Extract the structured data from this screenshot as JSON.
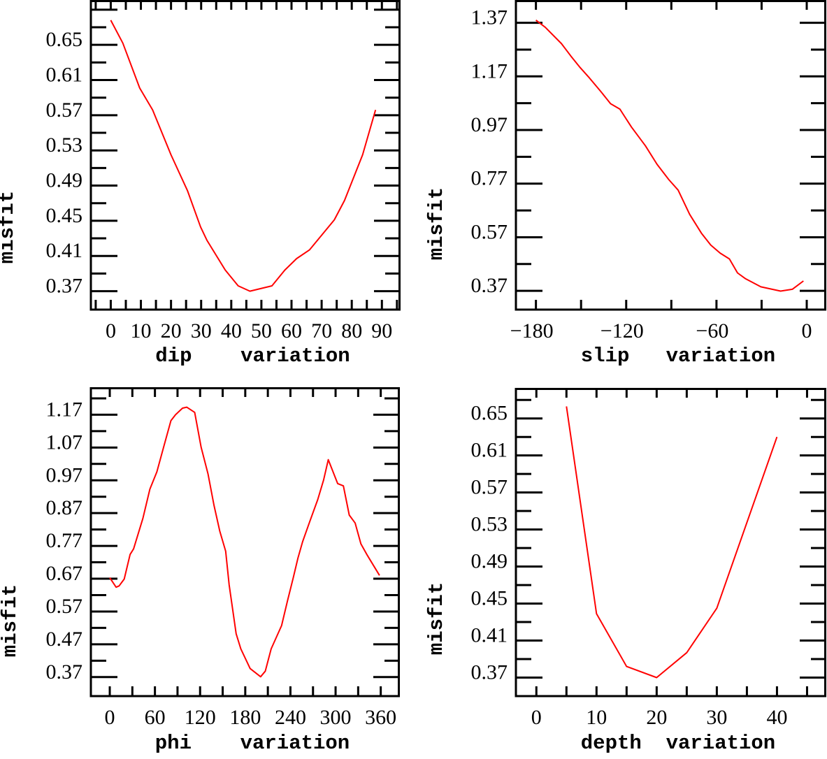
{
  "chart_data": [
    {
      "type": "line",
      "xlabel": "dip    variation",
      "ylabel": "misfit",
      "xlim": [
        -6.6,
        96.2
      ],
      "ylim": [
        0.349,
        0.701
      ],
      "xticks": [
        0,
        10,
        20,
        30,
        40,
        50,
        60,
        70,
        80,
        90
      ],
      "xtick_labels": [
        "0",
        "10",
        "20",
        "30",
        "40",
        "50",
        "60",
        "70",
        "80",
        "90"
      ],
      "xminor_step": 5,
      "yticks": [
        0.37,
        0.41,
        0.45,
        0.49,
        0.53,
        0.57,
        0.61,
        0.65
      ],
      "ytick_labels": [
        "0.37",
        "0.41",
        "0.45",
        "0.49",
        "0.53",
        "0.57",
        "0.61",
        "0.65"
      ],
      "yminor_step": 0.02,
      "color": "#ff0000",
      "series": [
        {
          "name": "misfit",
          "x": [
            0,
            4,
            9.6,
            13.9,
            20,
            25.5,
            29.8,
            31.9,
            38,
            42.3,
            46.2,
            53.5,
            57.8,
            61.7,
            66,
            74.2,
            77.6,
            83.6,
            87.9
          ],
          "y": [
            0.678,
            0.652,
            0.601,
            0.576,
            0.525,
            0.484,
            0.443,
            0.428,
            0.394,
            0.376,
            0.37,
            0.376,
            0.394,
            0.407,
            0.417,
            0.451,
            0.473,
            0.525,
            0.576
          ]
        }
      ]
    },
    {
      "type": "line",
      "xlabel": "slip   variation",
      "ylabel": "misfit",
      "xlim": [
        -193.3,
        13
      ],
      "ylim": [
        0.3,
        1.455
      ],
      "xticks": [
        -180,
        -120,
        -60,
        0
      ],
      "xtick_labels": [
        "−180",
        "−120",
        "−60",
        "0"
      ],
      "xminor_step": 30,
      "yticks": [
        0.37,
        0.57,
        0.77,
        0.97,
        1.17,
        1.37
      ],
      "ytick_labels": [
        "0.37",
        "0.57",
        "0.77",
        "0.97",
        "1.17",
        "1.37"
      ],
      "yminor_step": 0.1,
      "color": "#ff0000",
      "series": [
        {
          "name": "misfit",
          "x": [
            -180,
            -173.8,
            -163,
            -156.8,
            -150.6,
            -144.4,
            -136.6,
            -133.5,
            -130.4,
            -124.2,
            -116.5,
            -107.2,
            -99.5,
            -91.7,
            -85.5,
            -77.8,
            -70,
            -63.8,
            -57.6,
            -51.4,
            -46,
            -40.6,
            -30.5,
            -17.4,
            -9.6,
            -2.2
          ],
          "y": [
            1.38,
            1.353,
            1.292,
            1.246,
            1.203,
            1.164,
            1.112,
            1.09,
            1.068,
            1.048,
            0.981,
            0.911,
            0.842,
            0.785,
            0.746,
            0.655,
            0.585,
            0.541,
            0.511,
            0.489,
            0.437,
            0.415,
            0.385,
            0.369,
            0.376,
            0.407
          ]
        }
      ]
    },
    {
      "type": "line",
      "xlabel": "phi    variation",
      "ylabel": "misfit",
      "xlim": [
        -25.1,
        385.4
      ],
      "ylim": [
        0.312,
        1.254
      ],
      "xticks": [
        0,
        60,
        120,
        180,
        240,
        300,
        360
      ],
      "xtick_labels": [
        "0",
        "60",
        "120",
        "180",
        "240",
        "300",
        "360"
      ],
      "xminor_step": 30,
      "yticks": [
        0.37,
        0.47,
        0.57,
        0.67,
        0.77,
        0.87,
        0.97,
        1.07,
        1.17
      ],
      "ytick_labels": [
        "0.37",
        "0.47",
        "0.57",
        "0.67",
        "0.77",
        "0.87",
        "0.97",
        "1.07",
        "1.17"
      ],
      "yminor_step": 0.05,
      "color": "#ff0000",
      "series": [
        {
          "name": "misfit",
          "x": [
            0,
            8.4,
            12.4,
            19.2,
            27,
            31.6,
            44,
            53.3,
            62.6,
            71.9,
            81.2,
            87.4,
            96.7,
            102.2,
            112.8,
            121.4,
            130.6,
            138.5,
            146.2,
            154,
            158.6,
            167.9,
            174.1,
            186.5,
            200.4,
            206.6,
            214.4,
            228.3,
            236.1,
            243.8,
            250,
            256.2,
            265.5,
            276.3,
            284.1,
            290.3,
            302.7,
            310.4,
            318.2,
            326,
            333.7,
            341.5,
            358.4
          ],
          "y": [
            0.673,
            0.644,
            0.648,
            0.669,
            0.744,
            0.761,
            0.854,
            0.943,
            0.996,
            1.074,
            1.152,
            1.17,
            1.19,
            1.193,
            1.177,
            1.071,
            0.989,
            0.893,
            0.815,
            0.754,
            0.651,
            0.502,
            0.456,
            0.396,
            0.371,
            0.388,
            0.456,
            0.527,
            0.602,
            0.673,
            0.733,
            0.783,
            0.843,
            0.911,
            0.971,
            1.033,
            0.96,
            0.953,
            0.864,
            0.84,
            0.776,
            0.744,
            0.68
          ]
        }
      ]
    },
    {
      "type": "line",
      "xlabel": "depth  variation",
      "ylabel": "misfit",
      "xlim": [
        -3.4,
        48.2
      ],
      "ylim": [
        0.35,
        0.683
      ],
      "xticks": [
        0,
        10,
        20,
        30,
        40
      ],
      "xtick_labels": [
        "0",
        "10",
        "20",
        "30",
        "40"
      ],
      "xminor_step": 5,
      "yticks": [
        0.37,
        0.41,
        0.45,
        0.49,
        0.53,
        0.57,
        0.61,
        0.65
      ],
      "ytick_labels": [
        "0.37",
        "0.41",
        "0.45",
        "0.49",
        "0.53",
        "0.57",
        "0.61",
        "0.65"
      ],
      "yminor_step": 0.02,
      "color": "#ff0000",
      "series": [
        {
          "name": "misfit",
          "x": [
            5,
            10,
            15,
            20,
            25,
            30,
            40
          ],
          "y": [
            0.663,
            0.439,
            0.382,
            0.37,
            0.397,
            0.445,
            0.63
          ]
        }
      ]
    }
  ]
}
